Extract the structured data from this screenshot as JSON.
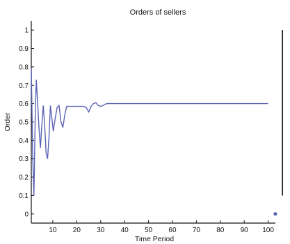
{
  "chart_data": {
    "type": "line",
    "title": "Orders of sellers",
    "xlabel": "Time Period",
    "ylabel": "Order",
    "xlim": [
      1,
      101
    ],
    "ylim": [
      -0.05,
      1.05
    ],
    "x_ticks": [
      10,
      20,
      30,
      40,
      50,
      60,
      70,
      80,
      90,
      100
    ],
    "y_ticks": [
      0,
      0.1,
      0.2,
      0.3,
      0.4,
      0.5,
      0.6,
      0.7,
      0.8,
      0.9,
      1
    ],
    "y_tick_labels": [
      "0",
      "0.1",
      "0.2",
      "0.3",
      "0.4",
      "0.5",
      "0.6",
      "0.7",
      "0.8",
      "0.9",
      "1"
    ],
    "grid": false,
    "line_color": "#5a63b5",
    "series": [
      {
        "x": [
          1,
          1.6,
          2.1,
          2.6,
          3.1,
          3.6,
          4.2,
          4.8,
          5.4,
          6.0,
          6.6,
          7.2,
          7.8,
          8.4,
          9.0,
          9.6,
          10.2,
          11.0,
          11.8,
          12.6,
          13.4,
          14.2,
          15.0,
          15.8,
          16.6,
          17.5,
          18.5,
          20,
          21.5,
          23,
          24,
          25,
          26,
          27,
          28,
          29,
          30,
          31,
          32,
          33,
          35,
          40,
          50,
          60,
          70,
          80,
          90,
          100
        ],
        "y": [
          0.79,
          0.3,
          0.1,
          0.5,
          0.73,
          0.62,
          0.47,
          0.36,
          0.48,
          0.59,
          0.48,
          0.33,
          0.3,
          0.42,
          0.59,
          0.52,
          0.45,
          0.52,
          0.58,
          0.59,
          0.5,
          0.47,
          0.54,
          0.585,
          0.585,
          0.585,
          0.585,
          0.585,
          0.585,
          0.585,
          0.578,
          0.555,
          0.585,
          0.6,
          0.605,
          0.59,
          0.585,
          0.59,
          0.598,
          0.6,
          0.6,
          0.6,
          0.6,
          0.6,
          0.6,
          0.6,
          0.6,
          0.6
        ]
      }
    ],
    "point": {
      "x": 103,
      "y": 0,
      "color": "#5a63b5"
    },
    "right_marker": {
      "x": 106,
      "y_from": 0.1,
      "y_to": 1.0
    }
  }
}
